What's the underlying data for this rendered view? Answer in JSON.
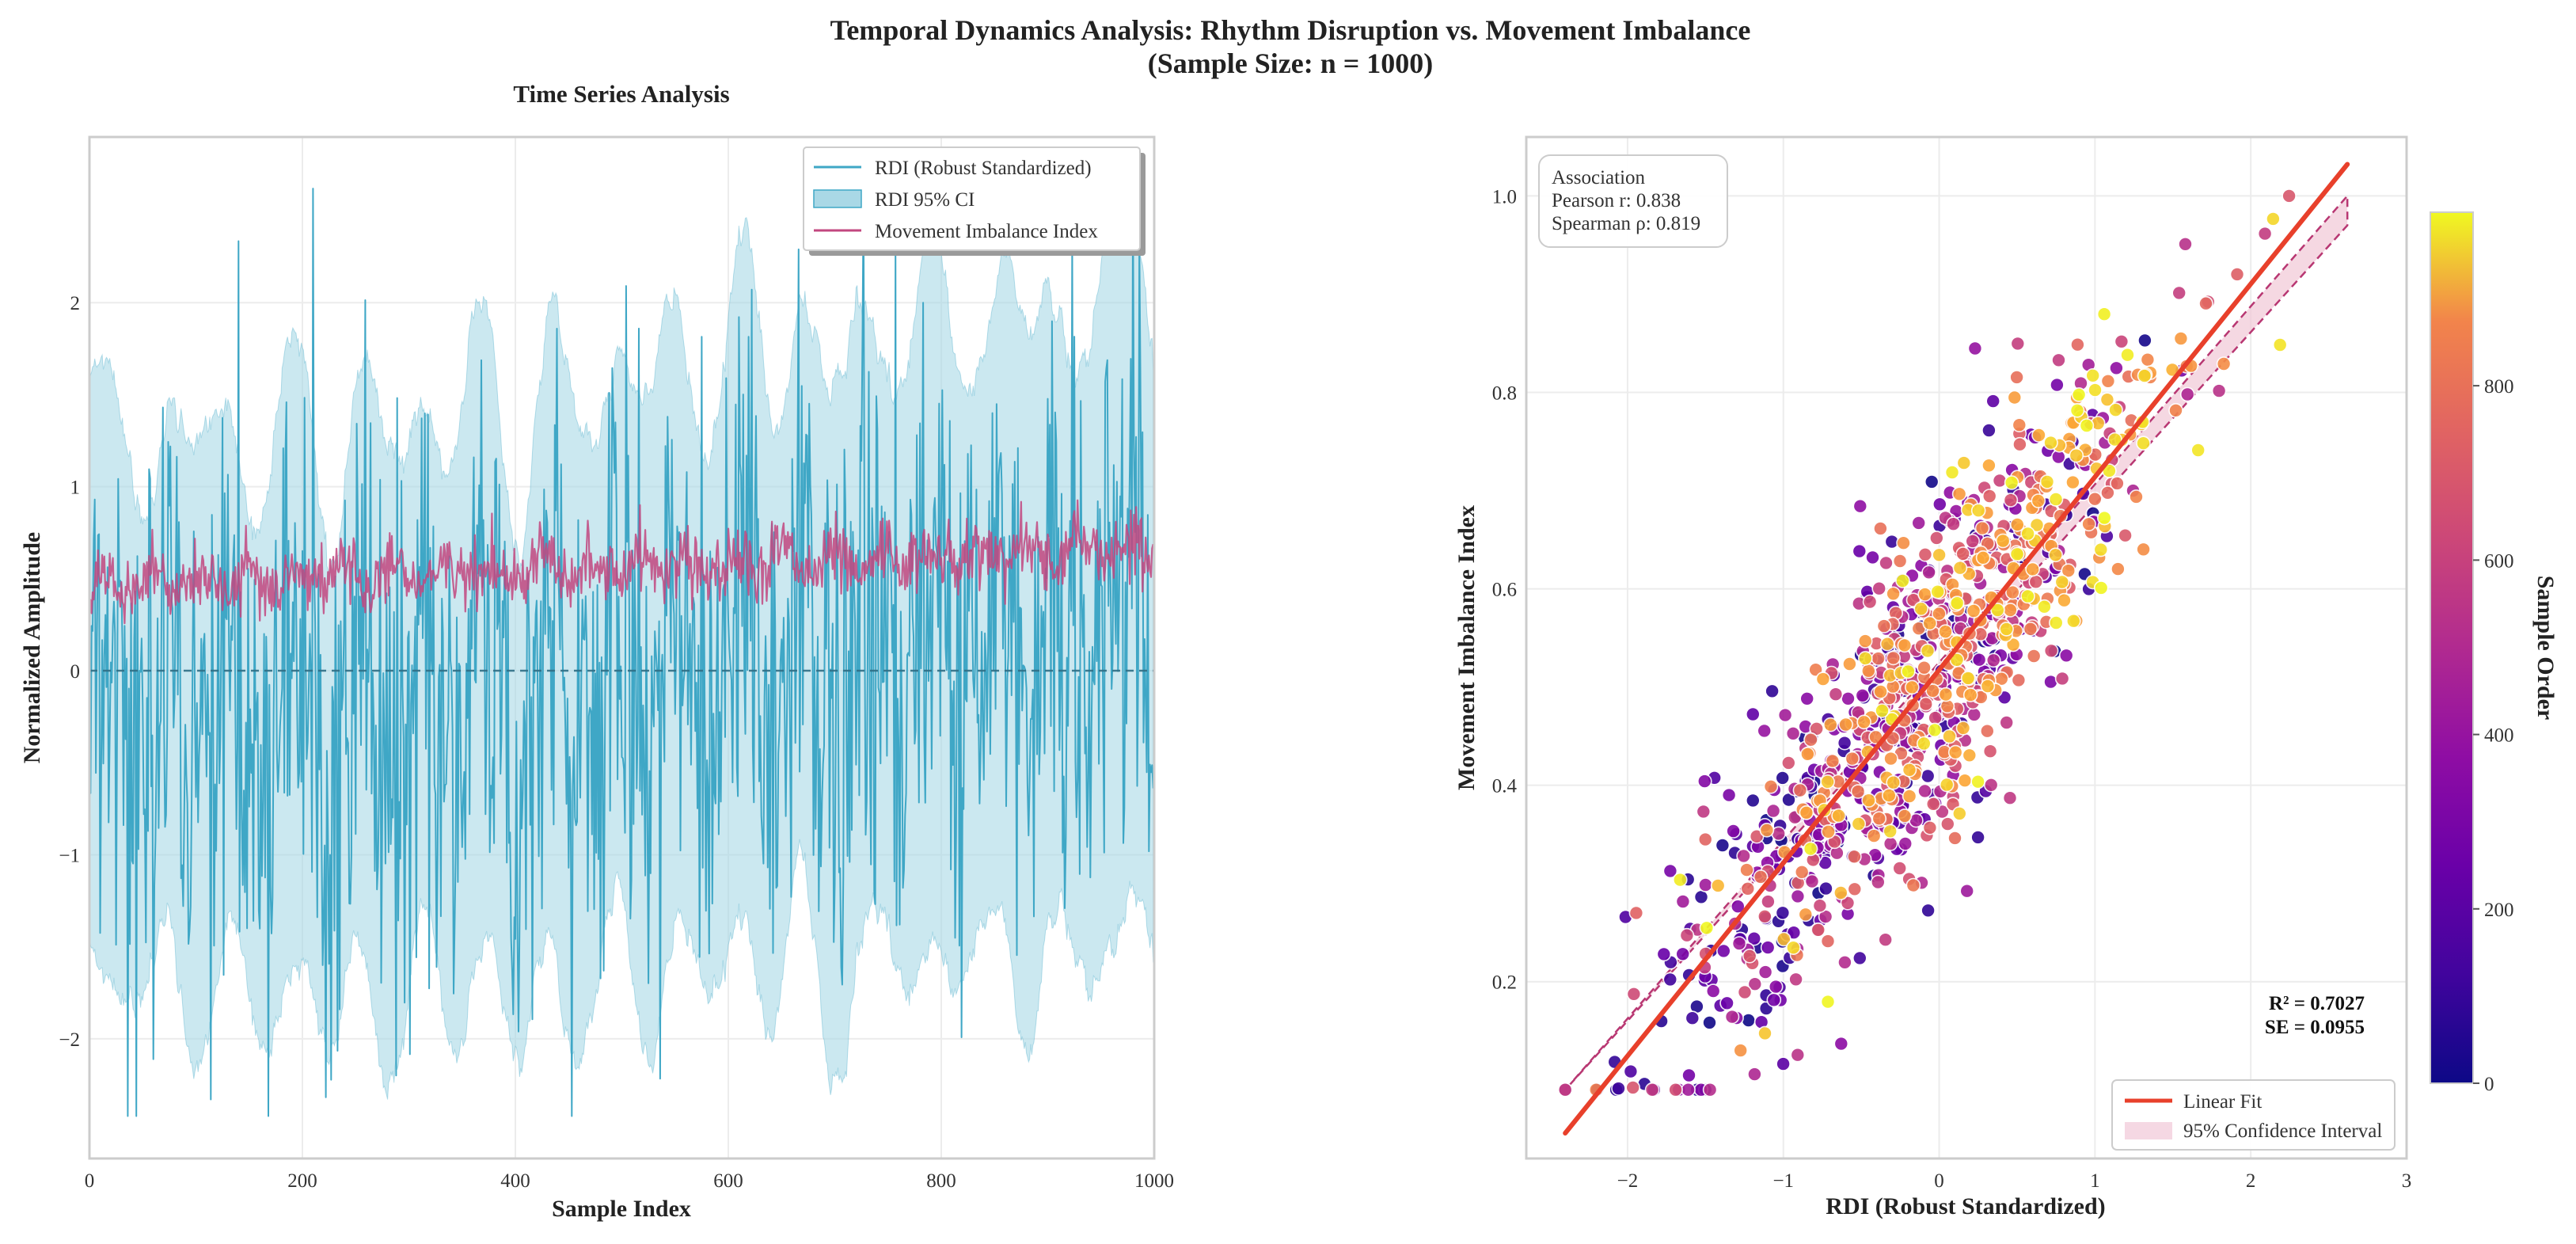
{
  "figure": {
    "title_line1": "Temporal Dynamics Analysis: Rhythm Disruption vs. Movement Imbalance",
    "title_line2": "(Sample Size: n = 1000)"
  },
  "colors": {
    "rdi_line": "#3fa7c6",
    "rdi_ci_fill": "#a9d8e6",
    "mii_line": "#c2477f",
    "fit_line": "#e8402b",
    "ci_band_fill": "#f1c8d7",
    "ci_band_edge": "#b52d6b",
    "zero_line": "#2f6f86"
  },
  "chart_data": [
    {
      "type": "line",
      "title": "Time Series Analysis",
      "xlabel": "Sample Index",
      "ylabel": "Normalized Amplitude",
      "xlim": [
        0,
        1000
      ],
      "ylim": [
        -2.65,
        2.9
      ],
      "xticks": [
        0,
        200,
        400,
        600,
        800,
        1000
      ],
      "xtick_labels": [
        "0",
        "200",
        "400",
        "600",
        "800",
        "1000"
      ],
      "yticks": [
        -2,
        -1,
        0,
        1,
        2
      ],
      "ytick_labels": [
        "−2",
        "−1",
        "0",
        "1",
        "2"
      ],
      "grid": true,
      "legend_position": "top-right",
      "n_samples": 1000,
      "series": [
        {
          "name": "RDI (Robust Standardized)",
          "kind": "line",
          "approx_mean_start": -0.35,
          "approx_mean_end": 0.3,
          "approx_std": 0.75,
          "min": -2.42,
          "max": 2.62
        },
        {
          "name": "RDI 95% CI",
          "kind": "band",
          "approx_halfwidth_start": 1.45,
          "approx_halfwidth_end": 1.8
        },
        {
          "name": "Movement Imbalance Index",
          "kind": "line",
          "approx_mean_start": 0.47,
          "approx_mean_end": 0.66,
          "approx_std": 0.09
        }
      ],
      "reference_line": {
        "y": 0,
        "style": "dashed"
      }
    },
    {
      "type": "scatter",
      "xlabel": "RDI (Robust Standardized)",
      "ylabel": "Movement Imbalance Index",
      "xlim": [
        -2.65,
        3.0
      ],
      "ylim": [
        0.02,
        1.06
      ],
      "xticks": [
        -2,
        -1,
        0,
        1,
        2,
        3
      ],
      "xtick_labels": [
        "−2",
        "−1",
        "0",
        "1",
        "2",
        "3"
      ],
      "yticks": [
        0.2,
        0.4,
        0.6,
        0.8,
        1.0
      ],
      "ytick_labels": [
        "0.2",
        "0.4",
        "0.6",
        "0.8",
        "1.0"
      ],
      "grid": true,
      "n_points": 1000,
      "x_range": [
        -2.4,
        2.62
      ],
      "y_range": [
        0.09,
        1.0
      ],
      "fit": {
        "slope": 0.1965,
        "intercept": 0.5174,
        "x_from": -2.4,
        "x_to": 2.62
      },
      "ci_band": {
        "lower_at_min": 0.09,
        "upper_at_min": 0.09,
        "lower_at_max": 0.97,
        "upper_at_max": 1.0
      },
      "association_box": {
        "title": "Association",
        "pearson": "Pearson r: 0.838",
        "spearman": "Spearman ρ: 0.819"
      },
      "stats": {
        "r2": "R² = 0.7027",
        "se": "SE = 0.0955"
      },
      "legend": [
        {
          "label": "Linear Fit",
          "kind": "line"
        },
        {
          "label": "95% Confidence Interval",
          "kind": "patch"
        }
      ],
      "legend_position": "lower-right",
      "colorbar": {
        "label": "Sample Order",
        "colormap": "plasma",
        "range": [
          0,
          999
        ],
        "ticks": [
          0,
          200,
          400,
          600,
          800
        ],
        "tick_labels": [
          "0",
          "200",
          "400",
          "600",
          "800"
        ]
      }
    }
  ]
}
